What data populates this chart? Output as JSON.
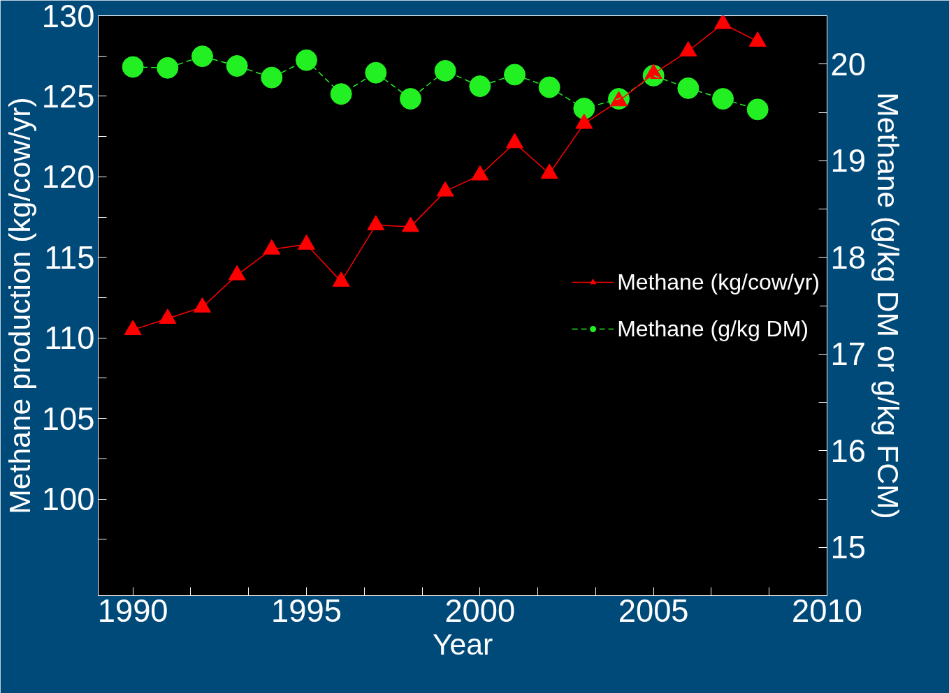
{
  "chart_data": {
    "type": "line",
    "xlabel": "Year",
    "ylabel": "Methane production (kg/cow/yr)",
    "y2label": "Methane (g/kg DM or g/kg FCM)",
    "x": [
      1990,
      1991,
      1992,
      1993,
      1994,
      1995,
      1996,
      1997,
      1998,
      1999,
      2000,
      2001,
      2002,
      2003,
      2004,
      2005,
      2006,
      2007,
      2008
    ],
    "series": [
      {
        "name": "Methane (kg/cow/yr)",
        "color": "#ff0000",
        "marker": "triangle",
        "line_style": "solid",
        "values": [
          110.5,
          111.2,
          111.9,
          113.9,
          115.5,
          115.8,
          113.5,
          117.0,
          116.9,
          119.1,
          120.1,
          122.1,
          120.2,
          123.3,
          124.7,
          126.4,
          127.8,
          129.5,
          128.4
        ]
      },
      {
        "name": "Methane (g/kg DM)",
        "color": "#22f022",
        "marker": "circle",
        "line_style": "dashed",
        "axis": "y2",
        "values": [
          19.97,
          19.96,
          20.08,
          19.98,
          19.86,
          20.04,
          19.69,
          19.91,
          19.64,
          19.93,
          19.77,
          19.89,
          19.76,
          19.54,
          19.64,
          19.88,
          19.75,
          19.64,
          19.53
        ]
      }
    ],
    "xlim": [
      1989,
      2010
    ],
    "xticks": [
      1990,
      {
        "value": 1991.667,
        "label": null
      },
      {
        "value": 1993.333,
        "label": null
      },
      1995,
      {
        "value": 1996.667,
        "label": null
      },
      {
        "value": 1998.333,
        "label": null
      },
      2000,
      {
        "value": 2001.667,
        "label": null
      },
      {
        "value": 2003.333,
        "label": null
      },
      2005,
      {
        "value": 2006.667,
        "label": null
      },
      {
        "value": 2008.333,
        "label": null
      },
      2010
    ],
    "ylim": [
      94,
      130
    ],
    "yticks": [
      {
        "value": 97.5,
        "label": null
      },
      100,
      {
        "value": 102.5,
        "label": null
      },
      105,
      {
        "value": 107.5,
        "label": null
      },
      110,
      {
        "value": 112.5,
        "label": null
      },
      115,
      {
        "value": 117.5,
        "label": null
      },
      120,
      {
        "value": 122.5,
        "label": null
      },
      125,
      {
        "value": 127.5,
        "label": null
      },
      130
    ],
    "y2lim": [
      14.5,
      20.5
    ],
    "y2ticks": [
      15,
      {
        "value": 15.5,
        "label": null
      },
      16,
      {
        "value": 16.5,
        "label": null
      },
      17,
      {
        "value": 17.5,
        "label": null
      },
      18,
      {
        "value": 18.5,
        "label": null
      },
      19,
      {
        "value": 19.5,
        "label": null
      },
      20
    ],
    "legend": "right",
    "grid": false
  }
}
